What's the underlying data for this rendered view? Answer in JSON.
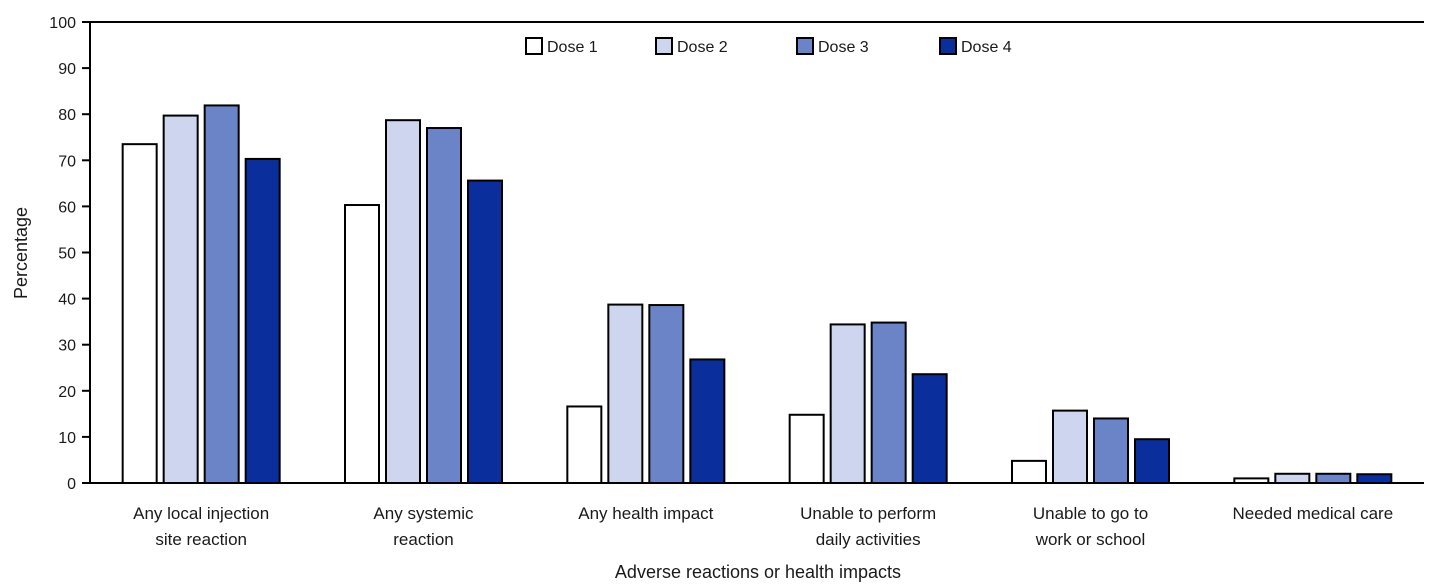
{
  "chart_data": {
    "type": "bar",
    "title": "",
    "xlabel": "Adverse reactions or health impacts",
    "ylabel": "Percentage",
    "ylim": [
      0,
      100
    ],
    "yticks": [
      "0",
      "10",
      "20",
      "30",
      "40",
      "50",
      "60",
      "70",
      "80",
      "90",
      "100"
    ],
    "grid": false,
    "legend_position": "top-center",
    "categories": [
      [
        "Any local injection",
        "site reaction"
      ],
      [
        "Any systemic",
        "reaction"
      ],
      [
        "Any health impact"
      ],
      [
        "Unable to perform",
        "daily activities"
      ],
      [
        "Unable to go to",
        "work or school"
      ],
      [
        "Needed medical care"
      ]
    ],
    "series": [
      {
        "name": "Dose 1",
        "color": "#ffffff",
        "values": [
          73.5,
          60.3,
          16.6,
          14.8,
          4.8,
          1.0
        ]
      },
      {
        "name": "Dose 2",
        "color": "#cdd6ee",
        "values": [
          79.7,
          78.7,
          38.7,
          34.4,
          15.7,
          2.0
        ]
      },
      {
        "name": "Dose 3",
        "color": "#6b84c7",
        "values": [
          81.9,
          77.0,
          38.6,
          34.8,
          14.0,
          2.0
        ]
      },
      {
        "name": "Dose 4",
        "color": "#0a2f9c",
        "values": [
          70.3,
          65.6,
          26.8,
          23.6,
          9.5,
          1.9
        ]
      }
    ]
  }
}
